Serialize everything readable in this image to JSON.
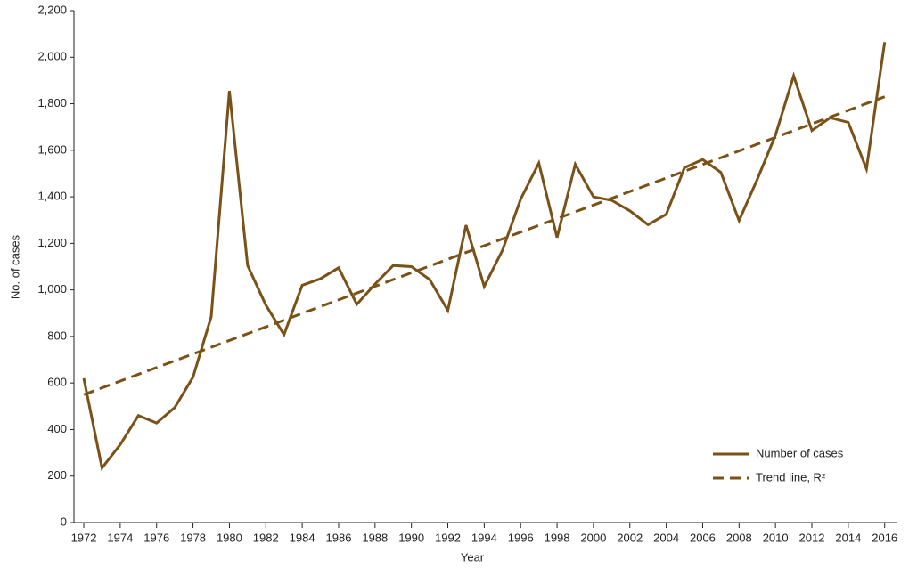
{
  "chart_data": {
    "type": "line",
    "x_label": "Year",
    "y_label": "No. of cases",
    "x": [
      1972,
      1973,
      1974,
      1975,
      1976,
      1977,
      1978,
      1979,
      1980,
      1981,
      1982,
      1983,
      1984,
      1985,
      1986,
      1987,
      1988,
      1989,
      1990,
      1991,
      1992,
      1993,
      1994,
      1995,
      1996,
      1997,
      1998,
      1999,
      2000,
      2001,
      2002,
      2003,
      2004,
      2005,
      2006,
      2007,
      2008,
      2009,
      2010,
      2011,
      2012,
      2013,
      2014,
      2015,
      2016
    ],
    "series": [
      {
        "name": "Number of cases",
        "color": "#7a5218",
        "style": "solid",
        "values": [
          620,
          235,
          335,
          460,
          428,
          495,
          625,
          885,
          1855,
          1105,
          935,
          808,
          1020,
          1048,
          1095,
          938,
          1025,
          1105,
          1100,
          1045,
          912,
          1278,
          1015,
          1170,
          1390,
          1545,
          1225,
          1540,
          1400,
          1385,
          1340,
          1280,
          1325,
          1525,
          1560,
          1505,
          1298,
          1475,
          1665,
          1920,
          1685,
          1740,
          1720,
          1520,
          2065
        ]
      },
      {
        "name": "Trend line, R²",
        "color": "#7a5218",
        "style": "dashed",
        "x": [
          1972,
          2016
        ],
        "values": [
          550,
          1830
        ]
      }
    ],
    "xlim": [
      1971.46,
      2016.7
    ],
    "xticks": [
      1972,
      1974,
      1976,
      1978,
      1980,
      1982,
      1984,
      1986,
      1988,
      1990,
      1992,
      1994,
      1996,
      1998,
      2000,
      2002,
      2004,
      2006,
      2008,
      2010,
      2012,
      2014,
      2016
    ],
    "ylim": [
      0,
      2200
    ],
    "yticks": [
      0,
      200,
      400,
      600,
      800,
      {
        "value": 1000,
        "label": "1,000"
      },
      {
        "value": 1200,
        "label": "1,200"
      },
      {
        "value": 1400,
        "label": "1,400"
      },
      {
        "value": 1600,
        "label": "1,600"
      },
      {
        "value": 1800,
        "label": "1,800"
      },
      {
        "value": 2000,
        "label": "2,000"
      },
      {
        "value": 2200,
        "label": "2,200"
      }
    ],
    "grid": false,
    "legend": "lower right"
  }
}
